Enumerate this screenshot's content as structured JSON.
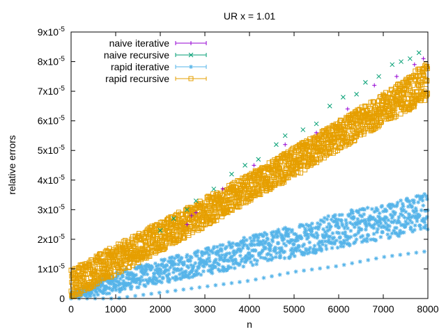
{
  "chart_data": {
    "type": "scatter",
    "title": "UR x = 1.01",
    "xlabel": "n",
    "ylabel": "relative errors",
    "xlim": [
      0,
      8000
    ],
    "ylim": [
      0,
      9e-05
    ],
    "x_ticks": [
      "0",
      "1000",
      "2000",
      "3000",
      "4000",
      "5000",
      "6000",
      "7000",
      "8000"
    ],
    "y_ticks": [
      {
        "value": 0,
        "mantissa": "0",
        "exp": ""
      },
      {
        "value": 1e-05,
        "mantissa": "1x10",
        "exp": "-5"
      },
      {
        "value": 2e-05,
        "mantissa": "2x10",
        "exp": "-5"
      },
      {
        "value": 3e-05,
        "mantissa": "3x10",
        "exp": "-5"
      },
      {
        "value": 4e-05,
        "mantissa": "4x10",
        "exp": "-5"
      },
      {
        "value": 5e-05,
        "mantissa": "5x10",
        "exp": "-5"
      },
      {
        "value": 6e-05,
        "mantissa": "6x10",
        "exp": "-5"
      },
      {
        "value": 7e-05,
        "mantissa": "7x10",
        "exp": "-5"
      },
      {
        "value": 8e-05,
        "mantissa": "8x10",
        "exp": "-5"
      },
      {
        "value": 9e-05,
        "mantissa": "9x10",
        "exp": "-5"
      }
    ],
    "grid": false,
    "legend_position": "top-left",
    "series": [
      {
        "name": "naive iterative",
        "color": "#9400d3",
        "marker": "plus",
        "x": [
          2600,
          2700,
          2800,
          3400,
          4100,
          4800,
          5500,
          6200,
          6800,
          7300,
          7700,
          7900
        ],
        "values": [
          2.5e-05,
          2.8e-05,
          2.9e-05,
          3.7e-05,
          4.5e-05,
          5.2e-05,
          5.6e-05,
          6.4e-05,
          7.2e-05,
          7.5e-05,
          7.9e-05,
          8.1e-05
        ]
      },
      {
        "name": "naive recursive",
        "color": "#009e73",
        "marker": "cross",
        "x": [
          2000,
          2300,
          2600,
          2800,
          3200,
          3600,
          3900,
          4200,
          4600,
          4800,
          5200,
          5500,
          5800,
          6100,
          6400,
          6600,
          6900,
          7200,
          7400,
          7600,
          7800
        ],
        "values": [
          2.3e-05,
          2.7e-05,
          3e-05,
          3.3e-05,
          3.7e-05,
          4.2e-05,
          4.5e-05,
          4.7e-05,
          5.2e-05,
          5.5e-05,
          5.7e-05,
          5.9e-05,
          6.5e-05,
          6.8e-05,
          6.9e-05,
          7.3e-05,
          7.5e-05,
          7.9e-05,
          8e-05,
          8.1e-05,
          8.3e-05
        ]
      },
      {
        "name": "rapid iterative",
        "color": "#56b4e9",
        "marker": "star",
        "envelope": {
          "x": [
            0,
            1000,
            2000,
            3000,
            4000,
            5000,
            6000,
            7000,
            8000
          ],
          "low": [
            0,
            2e-06,
            5e-06,
            8e-06,
            1.1e-05,
            1.4e-05,
            1.7e-05,
            2e-05,
            2.3e-05
          ],
          "high": [
            2e-06,
            9e-06,
            1.3e-05,
            1.7e-05,
            2.1e-05,
            2.5e-05,
            2.9e-05,
            3.2e-05,
            3.6e-05
          ],
          "outliers_low": [
            0,
            0,
            2e-06,
            4e-06,
            6e-06,
            9e-06,
            1.1e-05,
            1.4e-05,
            1.6e-05
          ]
        }
      },
      {
        "name": "rapid recursive",
        "color": "#e69f00",
        "marker": "square",
        "envelope": {
          "x": [
            0,
            1000,
            2000,
            3000,
            4000,
            5000,
            6000,
            7000,
            8000
          ],
          "low": [
            0,
            8e-06,
            1.6e-05,
            2.4e-05,
            3.3e-05,
            4.1e-05,
            5e-05,
            5.9e-05,
            6.7e-05
          ],
          "high": [
            1e-05,
            1.8e-05,
            2.6e-05,
            3.4e-05,
            4.2e-05,
            5.1e-05,
            6e-05,
            6.9e-05,
            8e-05
          ]
        }
      }
    ]
  }
}
